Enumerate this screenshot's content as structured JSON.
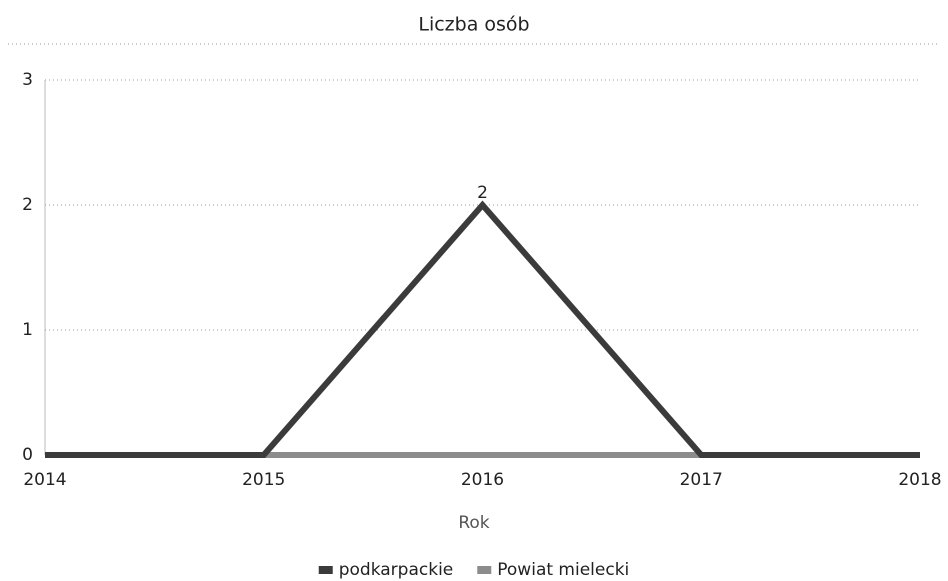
{
  "chart_data": {
    "type": "line",
    "title": "Liczba osób",
    "x_label": "Rok",
    "x": [
      2014,
      2015,
      2016,
      2017,
      2018
    ],
    "xlim": [
      2014,
      2018
    ],
    "xticks": [
      2014,
      2015,
      2016,
      2017,
      2018
    ],
    "ylim": [
      0,
      3
    ],
    "yticks": [
      0,
      1,
      2,
      3
    ],
    "grid": true,
    "legend": "bottom",
    "series": [
      {
        "name": "podkarpackie",
        "color": "#3b3b3b",
        "values": [
          0,
          0,
          2,
          0,
          0
        ]
      },
      {
        "name": "Powiat mielecki",
        "color": "#8c8c8c",
        "values": [
          0,
          0,
          0,
          0,
          0
        ]
      }
    ]
  }
}
